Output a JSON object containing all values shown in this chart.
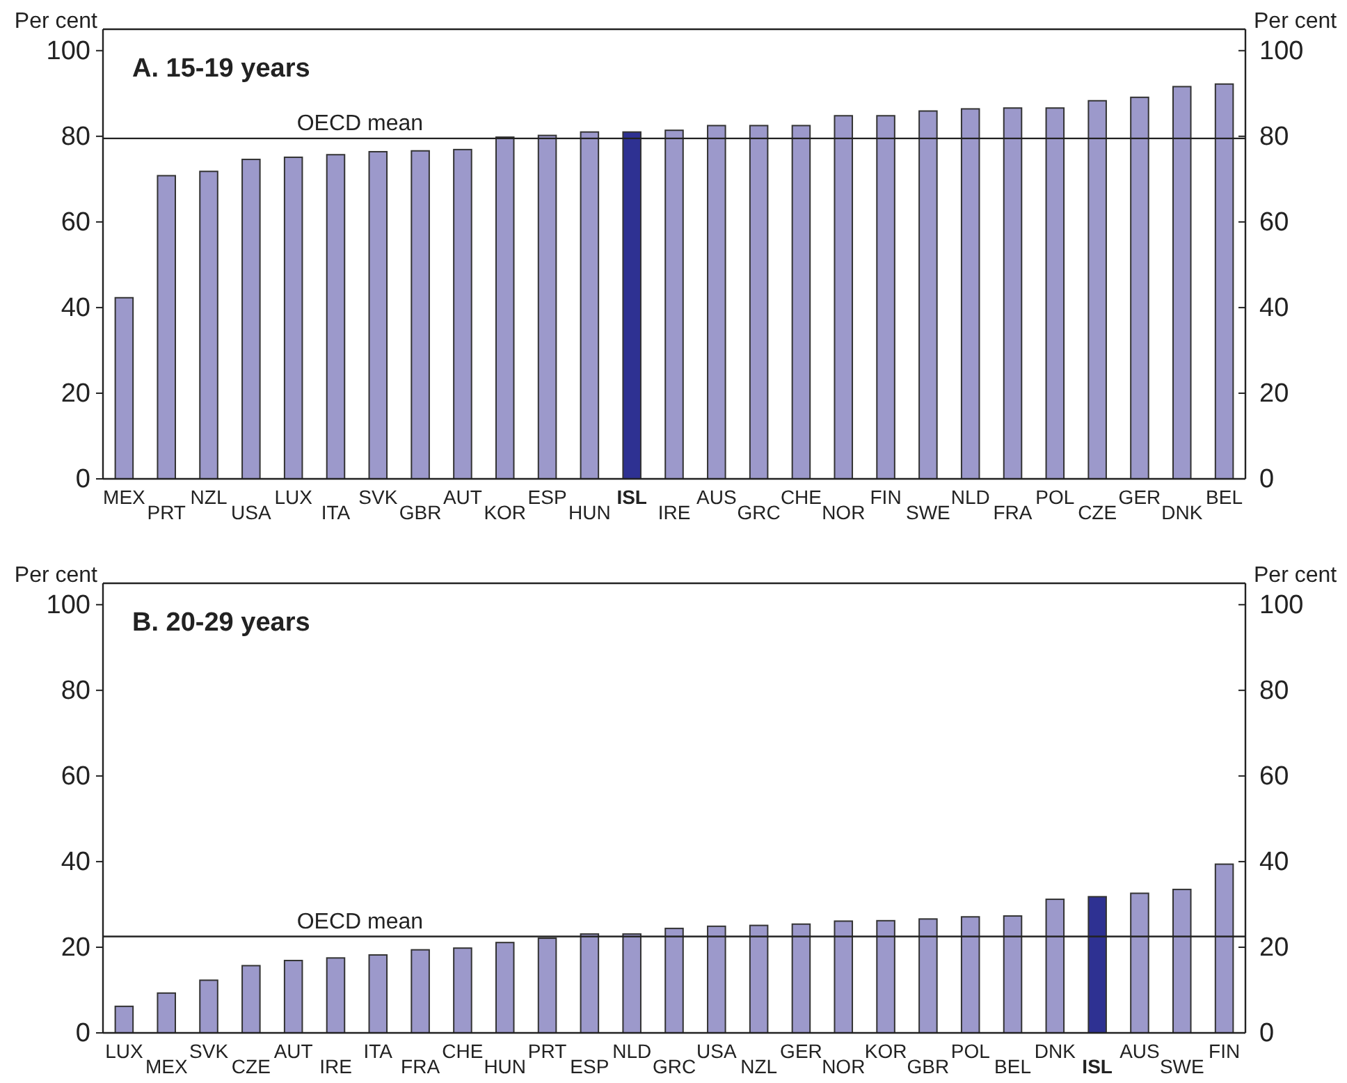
{
  "chart_data": [
    {
      "type": "bar",
      "title": "A. 15-19 years",
      "ylabel": "Per cent",
      "y2label": "Per cent",
      "categories": [
        "MEX",
        "PRT",
        "NZL",
        "USA",
        "LUX",
        "ITA",
        "SVK",
        "GBR",
        "AUT",
        "KOR",
        "ESP",
        "HUN",
        "ISL",
        "IRE",
        "AUS",
        "GRC",
        "CHE",
        "NOR",
        "FIN",
        "SWE",
        "NLD",
        "FRA",
        "POL",
        "CZE",
        "GER",
        "DNK",
        "BEL"
      ],
      "values": [
        42.3,
        70.8,
        71.8,
        74.6,
        75.1,
        75.7,
        76.4,
        76.6,
        76.9,
        79.8,
        80.2,
        81.0,
        81.0,
        81.4,
        82.5,
        82.5,
        82.5,
        84.8,
        84.8,
        85.9,
        86.4,
        86.6,
        86.6,
        88.3,
        89.1,
        91.6,
        92.2
      ],
      "colors": [
        "#9c99cb",
        "#9c99cb",
        "#9c99cb",
        "#9c99cb",
        "#9c99cb",
        "#9c99cb",
        "#9c99cb",
        "#9c99cb",
        "#9c99cb",
        "#9c99cb",
        "#9c99cb",
        "#9c99cb",
        "#2e3192",
        "#9c99cb",
        "#9c99cb",
        "#9c99cb",
        "#9c99cb",
        "#9c99cb",
        "#9c99cb",
        "#9c99cb",
        "#9c99cb",
        "#9c99cb",
        "#9c99cb",
        "#9c99cb",
        "#9c99cb",
        "#9c99cb",
        "#9c99cb"
      ],
      "ylim": [
        0,
        105
      ],
      "yticks": [
        0,
        20,
        40,
        60,
        80,
        100
      ],
      "y2lim": [
        0,
        105
      ],
      "y2ticks": [
        0,
        20,
        40,
        60,
        80,
        100
      ],
      "ref_lines": [
        {
          "axis": "y",
          "value": 79.5,
          "label": "OECD mean"
        }
      ]
    },
    {
      "type": "bar",
      "title": "B. 20-29 years",
      "ylabel": "Per cent",
      "y2label": "Per cent",
      "categories": [
        "LUX",
        "MEX",
        "SVK",
        "CZE",
        "AUT",
        "IRE",
        "ITA",
        "FRA",
        "CHE",
        "HUN",
        "PRT",
        "ESP",
        "NLD",
        "GRC",
        "USA",
        "NZL",
        "GER",
        "NOR",
        "KOR",
        "GBR",
        "POL",
        "BEL",
        "DNK",
        "ISL",
        "AUS",
        "SWE",
        "FIN"
      ],
      "values": [
        6.2,
        9.3,
        12.3,
        15.7,
        16.9,
        17.5,
        18.2,
        19.4,
        19.8,
        21.1,
        22.1,
        23.1,
        23.1,
        24.4,
        24.9,
        25.1,
        25.4,
        26.1,
        26.2,
        26.6,
        27.1,
        27.3,
        31.2,
        31.8,
        32.6,
        33.5,
        39.4
      ],
      "colors": [
        "#9c99cb",
        "#9c99cb",
        "#9c99cb",
        "#9c99cb",
        "#9c99cb",
        "#9c99cb",
        "#9c99cb",
        "#9c99cb",
        "#9c99cb",
        "#9c99cb",
        "#9c99cb",
        "#9c99cb",
        "#9c99cb",
        "#9c99cb",
        "#9c99cb",
        "#9c99cb",
        "#9c99cb",
        "#9c99cb",
        "#9c99cb",
        "#9c99cb",
        "#9c99cb",
        "#9c99cb",
        "#9c99cb",
        "#2e3192",
        "#9c99cb",
        "#9c99cb",
        "#9c99cb"
      ],
      "ylim": [
        0,
        105
      ],
      "yticks": [
        0,
        20,
        40,
        60,
        80,
        100
      ],
      "y2lim": [
        0,
        105
      ],
      "y2ticks": [
        0,
        20,
        40,
        60,
        80,
        100
      ],
      "ref_lines": [
        {
          "axis": "y",
          "value": 22.5,
          "label": "OECD mean"
        }
      ]
    }
  ]
}
